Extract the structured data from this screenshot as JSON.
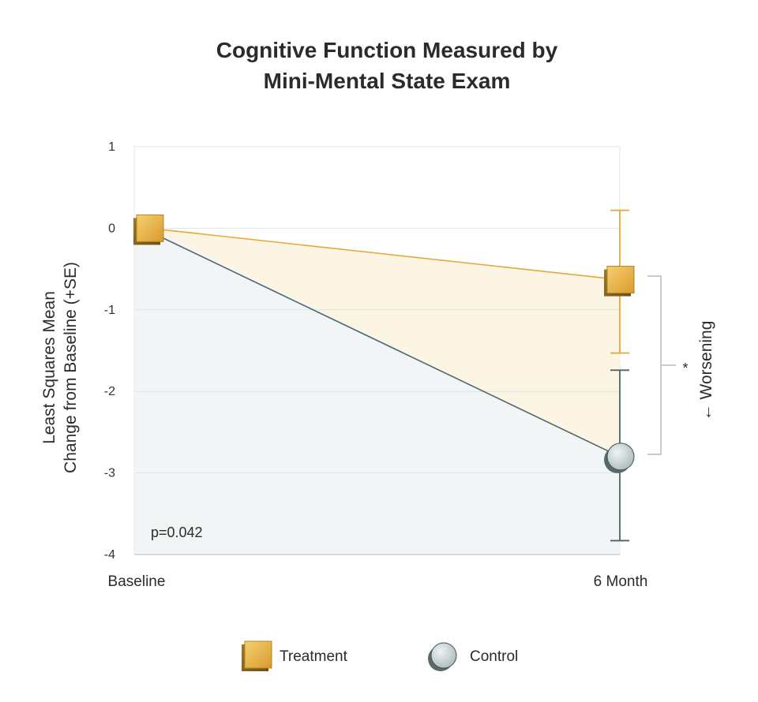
{
  "chart_data": {
    "type": "line",
    "title": [
      "Cognitive Function Measured by",
      "Mini-Mental State Exam"
    ],
    "ylabel": [
      "Least Squares Mean",
      "Change from Baseline (+SE)"
    ],
    "xlabel": "",
    "categories": [
      "Baseline",
      "6 Month"
    ],
    "yticks": [
      "1",
      "0",
      "-1",
      "-2",
      "-3",
      "-4"
    ],
    "ylim": [
      -4,
      1
    ],
    "grid": true,
    "legend_position": "bottom",
    "series": [
      {
        "name": "Treatment",
        "marker": "square",
        "color": "#e8b548",
        "values": [
          0,
          -0.63
        ],
        "error_upper": [
          null,
          0.22
        ],
        "error_lower": [
          null,
          -1.53
        ]
      },
      {
        "name": "Control",
        "marker": "circle",
        "color": "#4f6467",
        "values": [
          0,
          -2.8
        ],
        "error_upper": [
          null,
          -1.74
        ],
        "error_lower": [
          null,
          -3.83
        ]
      }
    ],
    "annotations": {
      "p_value": "p=0.042",
      "significance": "*",
      "direction": "← Worsening"
    }
  }
}
